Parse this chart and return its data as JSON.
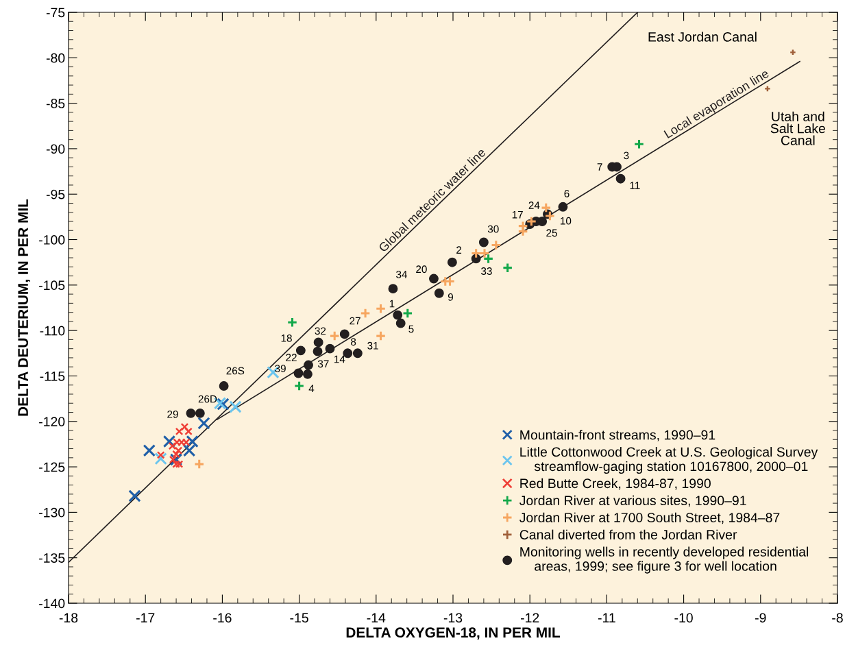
{
  "chart_data": {
    "type": "scatter",
    "xlabel": "DELTA OXYGEN-18, IN PER MIL",
    "ylabel": "DELTA DEUTERIUM, IN PER MIL",
    "xlim": [
      -18,
      -8
    ],
    "ylim": [
      -140,
      -75
    ],
    "xticks": [
      -18,
      -17,
      -16,
      -15,
      -14,
      -13,
      -12,
      -11,
      -10,
      -9,
      -8
    ],
    "yticks": [
      -140,
      -135,
      -130,
      -125,
      -120,
      -115,
      -110,
      -105,
      -100,
      -95,
      -90,
      -85,
      -80,
      -75
    ],
    "grid": false,
    "legend": "bottom right",
    "series": [
      {
        "type": "line",
        "color": "#231f20",
        "line_style": "solid",
        "x": [
          -18,
          -13.21,
          -10.6
        ],
        "values": [
          -135.5,
          -96.3,
          -75
        ]
      },
      {
        "type": "line",
        "name": "Local evaporation line",
        "color": "#231f20",
        "line_style": "solid",
        "x": [
          -16.07,
          -8.49
        ],
        "values": [
          -119.8,
          -80.4
        ]
      },
      {
        "name": "Mountain-front streams, 1990–91",
        "color": "#1f5fa8",
        "marker": "cross",
        "x": [
          -17.14,
          -16.95,
          -16.69,
          -16.6,
          -16.43,
          -16.39,
          -16.24,
          -15.99
        ],
        "values": [
          -128.2,
          -123.2,
          -122.2,
          -124.2,
          -123.2,
          -122.2,
          -120.2,
          -118.1
        ]
      },
      {
        "name": "Little Cottonwood Creek at U.S. Geological Survey\n    streamflow-gaging station 10167800, 2000–01",
        "color": "#6cc5ee",
        "marker": "cross",
        "x": [
          -16.8,
          -16.03,
          -15.83,
          -15.34
        ],
        "values": [
          -124.1,
          -118.0,
          -118.4,
          -114.6
        ]
      },
      {
        "name": "Red Butte Creek, 1984-87, 1990",
        "color": "#ee3e36",
        "marker": "cross",
        "x": [
          -16.49,
          -16.44,
          -16.56,
          -16.59,
          -16.53,
          -16.47,
          -16.65,
          -16.57,
          -16.6,
          -16.64,
          -16.56,
          -16.6,
          -16.8
        ],
        "values": [
          -120.6,
          -121.1,
          -121.1,
          -122.3,
          -122.3,
          -122.3,
          -122.7,
          -123.2,
          -123.6,
          -124.2,
          -124.7,
          -124.7,
          -123.7
        ]
      },
      {
        "name": "Jordan River at various sites, 1990–91",
        "color": "#13a84a",
        "marker": "plus",
        "x": [
          -15.09,
          -15.0,
          -13.59,
          -12.54,
          -12.29,
          -10.58
        ],
        "values": [
          -109.1,
          -116.1,
          -108.1,
          -102.1,
          -103.1,
          -89.5
        ]
      },
      {
        "name": "Jordan River at 1700 South Street, 1984–87",
        "color": "#f6a660",
        "marker": "plus",
        "x": [
          -16.3,
          -14.54,
          -14.14,
          -13.94,
          -13.94,
          -13.1,
          -13.04,
          -12.7,
          -12.59,
          -12.44,
          -12.09,
          -12.09,
          -11.98,
          -11.79,
          -11.74
        ],
        "values": [
          -124.7,
          -110.6,
          -108.1,
          -107.6,
          -110.6,
          -104.6,
          -104.6,
          -101.5,
          -101.5,
          -100.6,
          -98.5,
          -99.1,
          -98.0,
          -96.5,
          -97.4
        ]
      },
      {
        "name": "Canal diverted from the Jordan River",
        "color": "#a0603a",
        "marker": "plus",
        "x": [
          -8.58,
          -8.91
        ],
        "values": [
          -79.4,
          -83.4
        ]
      },
      {
        "name": "Monitoring wells in recently developed residential\n    areas, 1999; see figure 3 for well location",
        "color": "#231f20",
        "marker": "circle",
        "x": [
          -15.98,
          -16.29,
          -16.41,
          -15.01,
          -14.89,
          -14.88,
          -14.76,
          -14.75,
          -14.98,
          -14.6,
          -14.41,
          -14.37,
          -14.24,
          -13.78,
          -13.72,
          -13.68,
          -13.25,
          -13.18,
          -13.01,
          -12.7,
          -12.6,
          -12.0,
          -11.92,
          -11.84,
          -11.77,
          -11.57,
          -10.93,
          -10.87,
          -10.82
        ],
        "values": [
          -116.1,
          -119.1,
          -119.1,
          -114.7,
          -114.8,
          -113.8,
          -112.3,
          -111.3,
          -112.2,
          -112.0,
          -110.4,
          -112.5,
          -112.5,
          -105.4,
          -108.3,
          -109.2,
          -104.3,
          -105.9,
          -102.5,
          -102.1,
          -100.3,
          -98.3,
          -98.0,
          -98.0,
          -97.2,
          -96.4,
          -92.0,
          -92.0,
          -93.3
        ]
      }
    ],
    "annotations": [
      {
        "text": "26S",
        "x": -15.98,
        "y": -116.1
      },
      {
        "text": "26D",
        "x": -16.29,
        "y": -119.1
      },
      {
        "text": "29",
        "x": -16.41,
        "y": -119.1
      },
      {
        "text": "39",
        "x": -15.01,
        "y": -114.7
      },
      {
        "text": "4",
        "x": -14.89,
        "y": -114.8
      },
      {
        "text": "22",
        "x": -14.88,
        "y": -113.8
      },
      {
        "text": "37",
        "x": -14.76,
        "y": -112.3
      },
      {
        "text": "32",
        "x": -14.75,
        "y": -111.3
      },
      {
        "text": "18",
        "x": -14.98,
        "y": -112.2
      },
      {
        "text": "14",
        "x": -14.6,
        "y": -112.0
      },
      {
        "text": "27",
        "x": -14.41,
        "y": -110.4
      },
      {
        "text": "8",
        "x": -14.37,
        "y": -112.5
      },
      {
        "text": "31",
        "x": -14.24,
        "y": -112.5
      },
      {
        "text": "34",
        "x": -13.78,
        "y": -105.4
      },
      {
        "text": "1",
        "x": -13.72,
        "y": -108.3
      },
      {
        "text": "5",
        "x": -13.68,
        "y": -109.2
      },
      {
        "text": "20",
        "x": -13.25,
        "y": -104.3
      },
      {
        "text": "9",
        "x": -13.18,
        "y": -105.9
      },
      {
        "text": "2",
        "x": -13.01,
        "y": -102.5
      },
      {
        "text": "33",
        "x": -12.7,
        "y": -102.1
      },
      {
        "text": "30",
        "x": -12.6,
        "y": -100.3
      },
      {
        "text": "17",
        "x": -12.0,
        "y": -98.3
      },
      {
        "text": "24",
        "x": -11.92,
        "y": -98.0
      },
      {
        "text": "25",
        "x": -11.84,
        "y": -98.0
      },
      {
        "text": "10",
        "x": -11.77,
        "y": -97.2
      },
      {
        "text": "6",
        "x": -11.57,
        "y": -96.4
      },
      {
        "text": "7",
        "x": -10.93,
        "y": -92.0
      },
      {
        "text": "3",
        "x": -10.87,
        "y": -92.0
      },
      {
        "text": "11",
        "x": -10.82,
        "y": -93.3
      },
      {
        "text": "East Jordan Canal",
        "x": -8.58,
        "y": -79.4
      },
      {
        "text": "Utah and\nSalt Lake\nCanal",
        "x": -8.91,
        "y": -83.4
      },
      {
        "text": "Global meteoric water line",
        "x": -13.21,
        "y": -96.3
      }
    ]
  }
}
